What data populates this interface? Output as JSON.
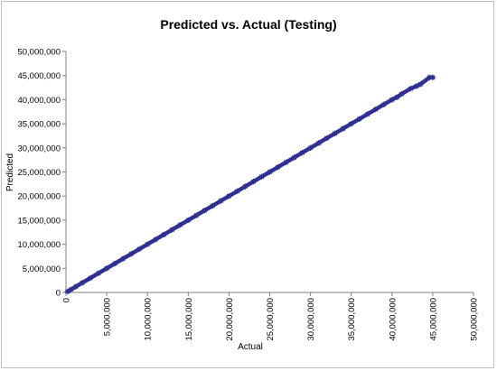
{
  "chart_data": {
    "type": "scatter",
    "title": "Predicted vs. Actual (Testing)",
    "xlabel": "Actual",
    "ylabel": "Predicted",
    "xlim": [
      0,
      50000000
    ],
    "ylim": [
      0,
      50000000
    ],
    "x_ticks": [
      "0",
      "5,000,000",
      "10,000,000",
      "15,000,000",
      "20,000,000",
      "25,000,000",
      "30,000,000",
      "35,000,000",
      "40,000,000",
      "45,000,000",
      "50,000,000"
    ],
    "y_ticks": [
      "0",
      "5,000,000",
      "10,000,000",
      "15,000,000",
      "20,000,000",
      "25,000,000",
      "30,000,000",
      "35,000,000",
      "40,000,000",
      "45,000,000",
      "50,000,000"
    ],
    "grid": false,
    "legend": "none",
    "marker": "star",
    "color": "#2E3192",
    "series": [
      {
        "x": [
          200000,
          600000,
          1200000,
          2000000,
          3000000,
          4000000,
          5000000,
          6000000,
          7000000,
          8000000,
          9000000,
          10000000,
          11000000,
          12000000,
          13000000,
          14000000,
          15000000,
          16000000,
          17000000,
          18000000,
          19000000,
          20000000,
          21000000,
          22000000,
          23000000,
          24000000,
          25000000,
          26000000,
          27000000,
          28000000,
          29000000,
          30000000,
          31000000,
          32000000,
          33000000,
          34000000,
          35000000,
          36000000,
          37000000,
          38000000,
          39000000,
          40000000,
          40600000,
          41200000,
          42300000,
          43000000,
          43500000,
          44600000,
          45000000
        ],
        "y": [
          200000,
          600000,
          1200000,
          2000000,
          3000000,
          4000000,
          5000000,
          6000000,
          7000000,
          8000000,
          9000000,
          10000000,
          11000000,
          12000000,
          13000000,
          14000000,
          15000000,
          16000000,
          17000000,
          18000000,
          19000000,
          20000000,
          21000000,
          22000000,
          23000000,
          24000000,
          25000000,
          26000000,
          27000000,
          28000000,
          29000000,
          30000000,
          31000000,
          32000000,
          33000000,
          34000000,
          35000000,
          36000000,
          37000000,
          38000000,
          39000000,
          40000000,
          40500000,
          41200000,
          42300000,
          42800000,
          43200000,
          44600000,
          44600000
        ]
      }
    ]
  }
}
